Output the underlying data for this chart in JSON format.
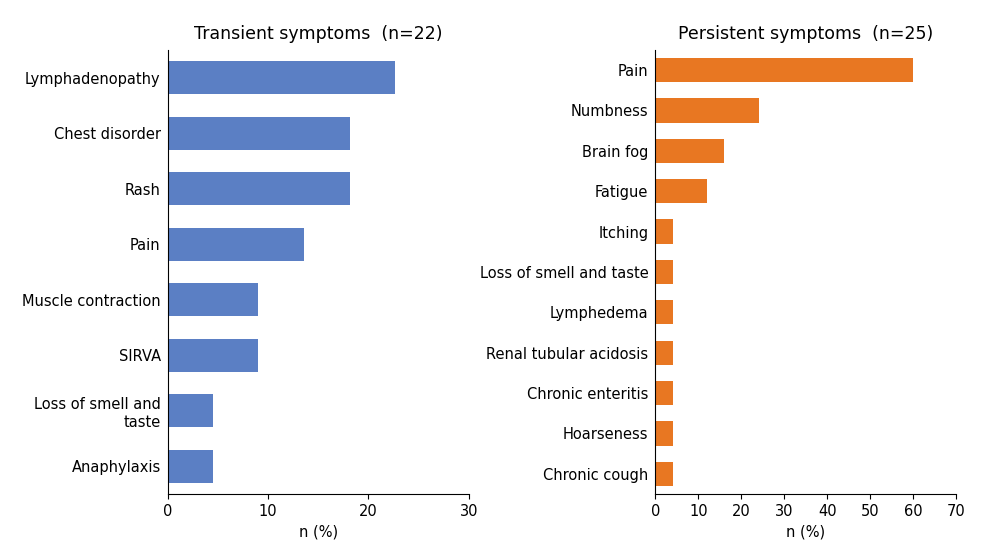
{
  "left_title": "Transient symptoms  (n=22)",
  "right_title": "Persistent symptoms  (n=25)",
  "left_categories": [
    "Lymphadenopathy",
    "Chest disorder",
    "Rash",
    "Pain",
    "Muscle contraction",
    "SIRVA",
    "Loss of smell and\ntaste",
    "Anaphylaxis"
  ],
  "left_values": [
    22.7,
    18.2,
    18.2,
    13.6,
    9,
    9,
    4.5,
    4.5
  ],
  "left_color": "#5b7fc4",
  "left_xlim": [
    0,
    30
  ],
  "left_xticks": [
    0,
    10,
    20,
    30
  ],
  "right_categories": [
    "Pain",
    "Numbness",
    "Brain fog",
    "Fatigue",
    "Itching",
    "Loss of smell and taste",
    "Lymphedema",
    "Renal tubular acidosis",
    "Chronic enteritis",
    "Hoarseness",
    "Chronic cough"
  ],
  "right_values": [
    60,
    24,
    16,
    12,
    4,
    4,
    4,
    4,
    4,
    4,
    4
  ],
  "right_color": "#e87722",
  "right_xlim": [
    0,
    70
  ],
  "right_xticks": [
    0,
    10,
    20,
    30,
    40,
    50,
    60,
    70
  ],
  "xlabel": "n (%)",
  "title_fontsize": 12.5,
  "label_fontsize": 10.5,
  "tick_fontsize": 10.5
}
